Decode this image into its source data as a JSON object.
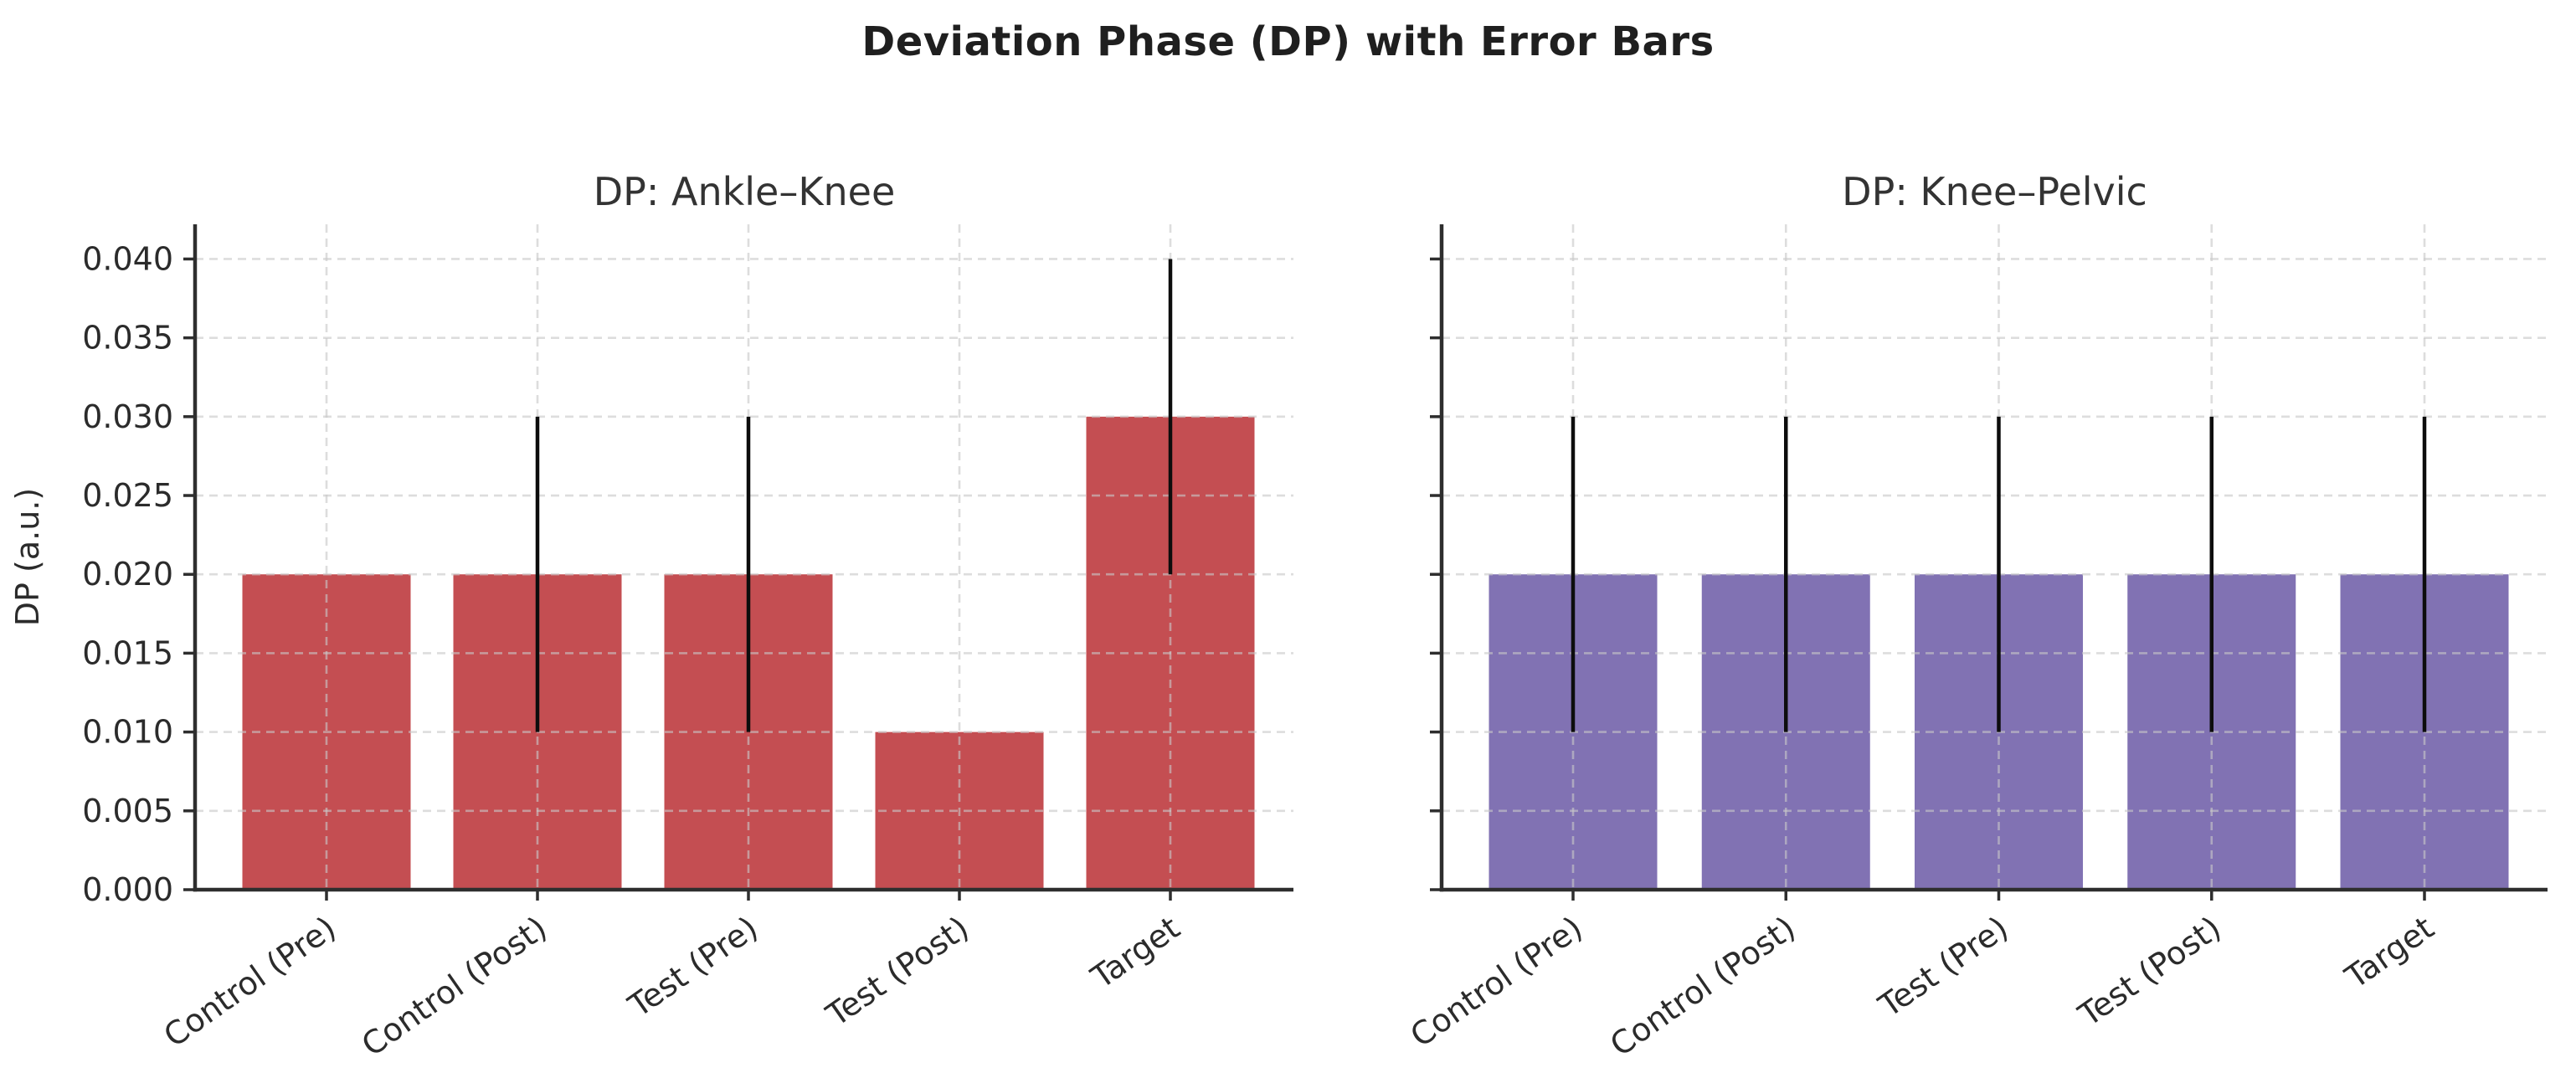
{
  "figure": {
    "title": "Deviation Phase (DP) with Error Bars",
    "ylabel": "DP (a.u.)",
    "background_color": "#ffffff",
    "text_color": "#2b2b2b",
    "grid_color": "#c8c8c8",
    "spine_color": "#2e2e2e",
    "error_bar_color": "#0d0d0d"
  },
  "chart_data": [
    {
      "type": "bar",
      "title": "DP: Ankle–Knee",
      "categories": [
        "Control (Pre)",
        "Control (Post)",
        "Test (Pre)",
        "Test (Post)",
        "Target"
      ],
      "values": [
        0.02,
        0.02,
        0.02,
        0.01,
        0.03
      ],
      "errors": [
        0,
        0.01,
        0.01,
        0,
        0.01
      ],
      "bar_color": "#C44E52",
      "ylabel": "DP (a.u.)",
      "ylim": [
        0,
        0.0422
      ],
      "yticks": [
        0.0,
        0.005,
        0.01,
        0.015,
        0.02,
        0.025,
        0.03,
        0.035,
        0.04
      ],
      "ytick_label_format_decimals": 3,
      "show_y_tick_labels": true,
      "show_y_axis_label": true,
      "grid": true,
      "x_tick_rotation_deg": 35,
      "legend": null
    },
    {
      "type": "bar",
      "title": "DP: Knee–Pelvic",
      "categories": [
        "Control (Pre)",
        "Control (Post)",
        "Test (Pre)",
        "Test (Post)",
        "Target"
      ],
      "values": [
        0.02,
        0.02,
        0.02,
        0.02,
        0.02
      ],
      "errors": [
        0.01,
        0.01,
        0.01,
        0.01,
        0.01
      ],
      "bar_color": "#8172B3",
      "ylabel": "",
      "ylim": [
        0,
        0.0422
      ],
      "yticks": [
        0.0,
        0.005,
        0.01,
        0.015,
        0.02,
        0.025,
        0.03,
        0.035,
        0.04
      ],
      "ytick_label_format_decimals": 3,
      "show_y_tick_labels": false,
      "show_y_axis_label": false,
      "grid": true,
      "x_tick_rotation_deg": 35,
      "legend": null
    }
  ]
}
